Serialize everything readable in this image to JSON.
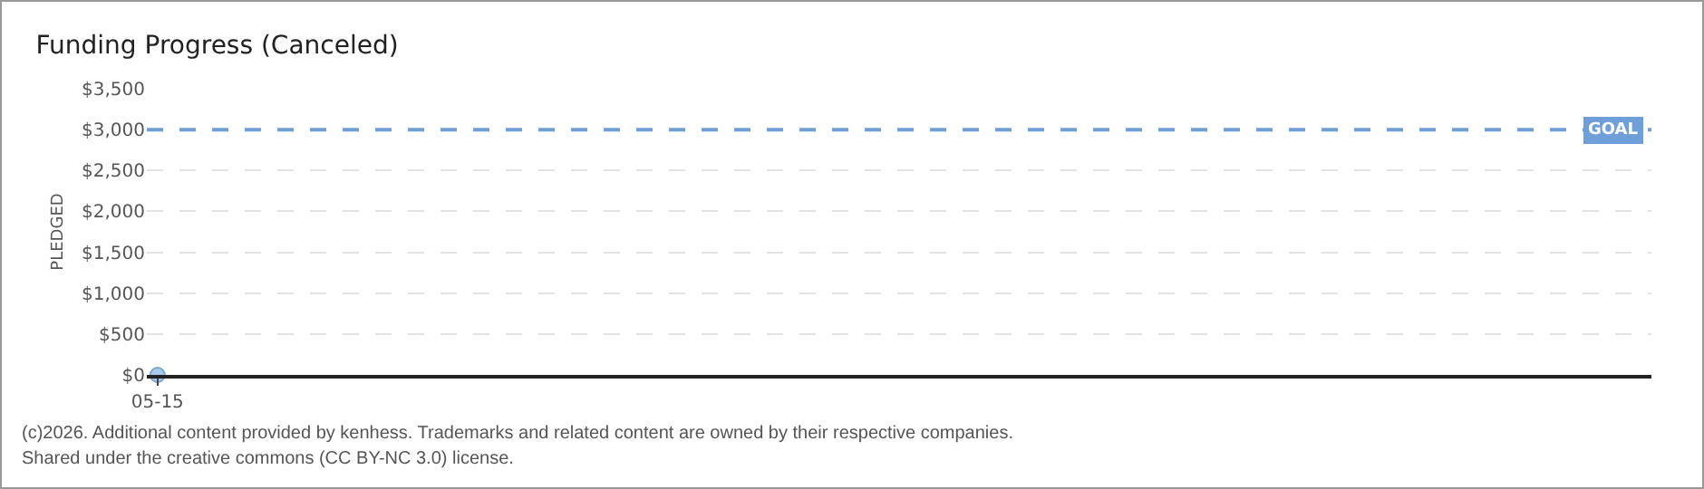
{
  "chart_data": {
    "type": "scatter",
    "title": "Funding Progress (Canceled)",
    "ylabel": "PLEDGED",
    "categories": [
      "05-15"
    ],
    "series": [
      {
        "color": "#a9c9ea",
        "values": [
          0
        ]
      }
    ],
    "marker": "circle",
    "ylim": [
      0,
      3500
    ],
    "yticks": [
      {
        "value": 0,
        "label": "$0"
      },
      {
        "value": 500,
        "label": "$500"
      },
      {
        "value": 1000,
        "label": "$1,000"
      },
      {
        "value": 1500,
        "label": "$1,500"
      },
      {
        "value": 2000,
        "label": "$2,000"
      },
      {
        "value": 2500,
        "label": "$2,500"
      },
      {
        "value": 3000,
        "label": "$3,000"
      },
      {
        "value": 3500,
        "label": "$3,500"
      }
    ],
    "grid": "y",
    "ref_lines": [
      {
        "axis": "y",
        "value": 3000,
        "label": "GOAL",
        "color": "#6f9fd8",
        "line_style": "dashed"
      }
    ],
    "annotations": [
      "(c)2026. Additional content provided by kenhess. Trademarks and related content are owned by their respective companies.",
      "Shared under the creative commons (CC BY-NC 3.0) license."
    ]
  }
}
